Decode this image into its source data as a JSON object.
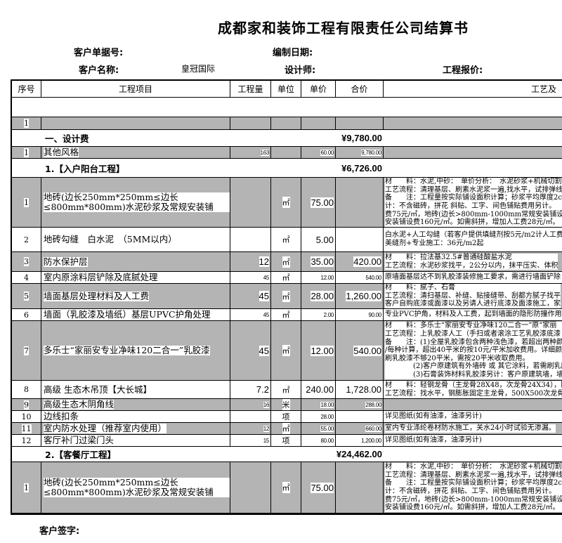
{
  "title": "成都家和装饰工程有限责任公司结算书",
  "meta": {
    "order_no_label": "客户单据号:",
    "date_label": "编制日期:",
    "customer_label": "客户名称:",
    "customer_value": "皇冠国际",
    "designer_label": "设计师:",
    "quote_label": "工程报价:"
  },
  "columns": [
    "序号",
    "工程项目",
    "工程量",
    "单位",
    "单价",
    "合价",
    "工艺及"
  ],
  "rows": [
    {
      "type": "blank"
    },
    {
      "type": "item",
      "seq": "1",
      "name": "",
      "qty": "",
      "unit": "",
      "price": "",
      "total": "",
      "desc": [],
      "shaded": true
    },
    {
      "type": "section",
      "label": "一、设计费",
      "total": "¥9,780.00"
    },
    {
      "type": "item",
      "seq": "1",
      "name": "其他风格",
      "qty": "163",
      "unit": "",
      "price": "60.00",
      "total": "9,780.00",
      "desc": [],
      "shaded": true
    },
    {
      "type": "section",
      "label": "1.【入户阳台工程】",
      "total": "¥6,726.00"
    },
    {
      "type": "item",
      "seq": "1",
      "name": "地砖(边长250mm*250mm≤边长≤800mm*800mm)水泥砂浆及常规安装铺",
      "qty": "",
      "unit": "㎡",
      "price": "75.00",
      "total": "",
      "shaded": true,
      "desc": [
        "材　　料：水泥,中砂：　单价分析：　水泥砂浆+机械切割人",
        "工艺流程：清理基层、刷素水泥浆一遍,找水平，试排弹线",
        "备　　注：工程量按实际铺设面积计算；砂浆平均厚度2c",
        "计：不含磁砖，拼花 斜贴、工字、间色铺贴费用另计。",
        "费75元/㎡，地砖(边长>800mm-1000mm常规安装铺设费108元",
        "安装铺设费160元/㎡。如需斜拼，增加人工费28元/㎡。"
      ]
    },
    {
      "type": "item",
      "seq": "2",
      "name": "地砖勾缝　白水泥　（5MM以内）",
      "qty": "",
      "unit": "㎡",
      "price": "5.00",
      "total": "",
      "shaded": false,
      "desc": [
        "白水泥+人工勾缝（若客户提供填缝剂按5元/m2计人工费）",
        "美缝剂+专业施工：36元/m2起"
      ]
    },
    {
      "type": "item",
      "seq": "3",
      "name": "防水保护层",
      "qty": "12",
      "unit": "㎡",
      "price": "35.00",
      "total": "420.00",
      "shaded": true,
      "desc": [
        "材　　料：拉法基32.5#普通硅酸盐水泥",
        "工艺流程：水泥砂浆找平，2公分以内，抹平压实、体积"
      ]
    },
    {
      "type": "item",
      "seq": "4",
      "name": "室内原涂料层铲除及底腻处理",
      "qty": "45",
      "unit": "㎡",
      "price": "12.00",
      "total": "540.00",
      "shaded": false,
      "desc": [
        "原墙面基层达不到乳胶漆装修施工要求，需进行墙面铲除"
      ]
    },
    {
      "type": "item",
      "seq": "5",
      "name": "墙面基层处理材料及人工费",
      "qty": "45",
      "unit": "㎡",
      "price": "28.00",
      "total": "1,260.00",
      "shaded": true,
      "desc": [
        "材　　料：腻子、石膏",
        "工艺流程：清扫基层、补缝、贴接缝带、刮都方腻子找平",
        "客户自购底漆或面漆以及另请人进行底漆及面漆施工，家"
      ]
    },
    {
      "type": "item",
      "seq": "6",
      "name": "墙面（乳胶漆及墙纸）基层UPVC护角处理",
      "qty": "45",
      "unit": "㎡",
      "price": "2.00",
      "total": "90.00",
      "shaded": false,
      "desc": [
        "专业PVC护角，材料及人工费，起到墙面的隐形防撞作用"
      ]
    },
    {
      "type": "item",
      "seq": "7",
      "name": "多乐士“家丽安专业净味120二合一”乳胶漆",
      "qty": "45",
      "unit": "㎡",
      "price": "12.00",
      "total": "540.00",
      "shaded": true,
      "desc": [
        "材　　料：多乐士“家丽安专业净味120二合一”原“家丽",
        "工艺流程：上乳胶漆人工（手扫或者滚涂工艺乳胶漆底漆",
        "备　　注：(1)全屋乳胶漆包含两种浅色漆，若超出两种颜",
        "/每种计算，超出40平米的按10元/平米加收费用。详细颜",
        "刷乳胶漆不够20平米，需按20平米收取费用。",
        "　　　　(2)客户原建筑有外墙砖 或 其它涂料，若需刷乳胶漆",
        "　　　　(3)石膏装饰材料乳胶漆另计：客户原建筑墙，墙面基"
      ]
    },
    {
      "type": "item",
      "seq": "8",
      "name": "高级 生态木吊顶【大长城】",
      "qty": "7.2",
      "unit": "㎡",
      "price": "240.00",
      "total": "1,728.00",
      "shaded": false,
      "desc": [
        "材　　料：轻钢龙骨（主龙骨28X48，次龙骨24X34），防火",
        "工艺流程：找水平，钢膨胀固定主龙骨，500X500次龙骨格"
      ]
    },
    {
      "type": "item",
      "seq": "9",
      "name": "高级生态木阴角线",
      "qty": "16",
      "unit": "米",
      "price": "18.00",
      "total": "288.00",
      "shaded": true,
      "desc": []
    },
    {
      "type": "item",
      "seq": "10",
      "name": "边线扣条",
      "qty": "",
      "unit": "项",
      "price": "28.00",
      "total": "",
      "shaded": false,
      "desc": [
        "详见图纸(如有油漆，油漆另计)"
      ]
    },
    {
      "type": "item",
      "seq": "11",
      "name": "室内防水处理（推荐室内使用）",
      "qty": "12",
      "unit": "㎡",
      "price": "55.00",
      "total": "660.00",
      "shaded": true,
      "desc": [
        "室内专业涤纶卷材防水施工，关水24小时试验无渗漏。"
      ]
    },
    {
      "type": "item",
      "seq": "12",
      "name": "客厅补门过梁门头",
      "qty": "15",
      "unit": "项",
      "price": "80.00",
      "total": "1,200.00",
      "shaded": false,
      "desc": [
        "详见图纸(如有油漆，油漆另计)"
      ]
    },
    {
      "type": "section",
      "label": "2.【客餐厅工程】",
      "total": "¥24,462.00"
    },
    {
      "type": "item",
      "seq": "1",
      "name": "地砖(边长250mm*250mm≤边长≤800mm*800mm)水泥砂浆及常规安装铺",
      "qty": "",
      "unit": "㎡",
      "price": "75.00",
      "total": "",
      "shaded": true,
      "desc": [
        "材　　料：水泥,中砂：　单价分析：　水泥砂浆+机械切割人",
        "工艺流程：清理基层、刷素水泥浆一遍,找水平，试排弹线",
        "备　　注：工程量按实际铺设面积计算；砂浆平均厚度2c",
        "计：不含磁砖，拼花 斜贴、工字、间色铺贴费用另计。",
        "费75元/㎡，地砖(边长>800mm-1000mm常规安装铺设费108元",
        "安装铺设费160元/㎡。如需斜拼，增加人工费28元/㎡。"
      ]
    }
  ],
  "footer": {
    "signature_label": "客户签字:"
  }
}
